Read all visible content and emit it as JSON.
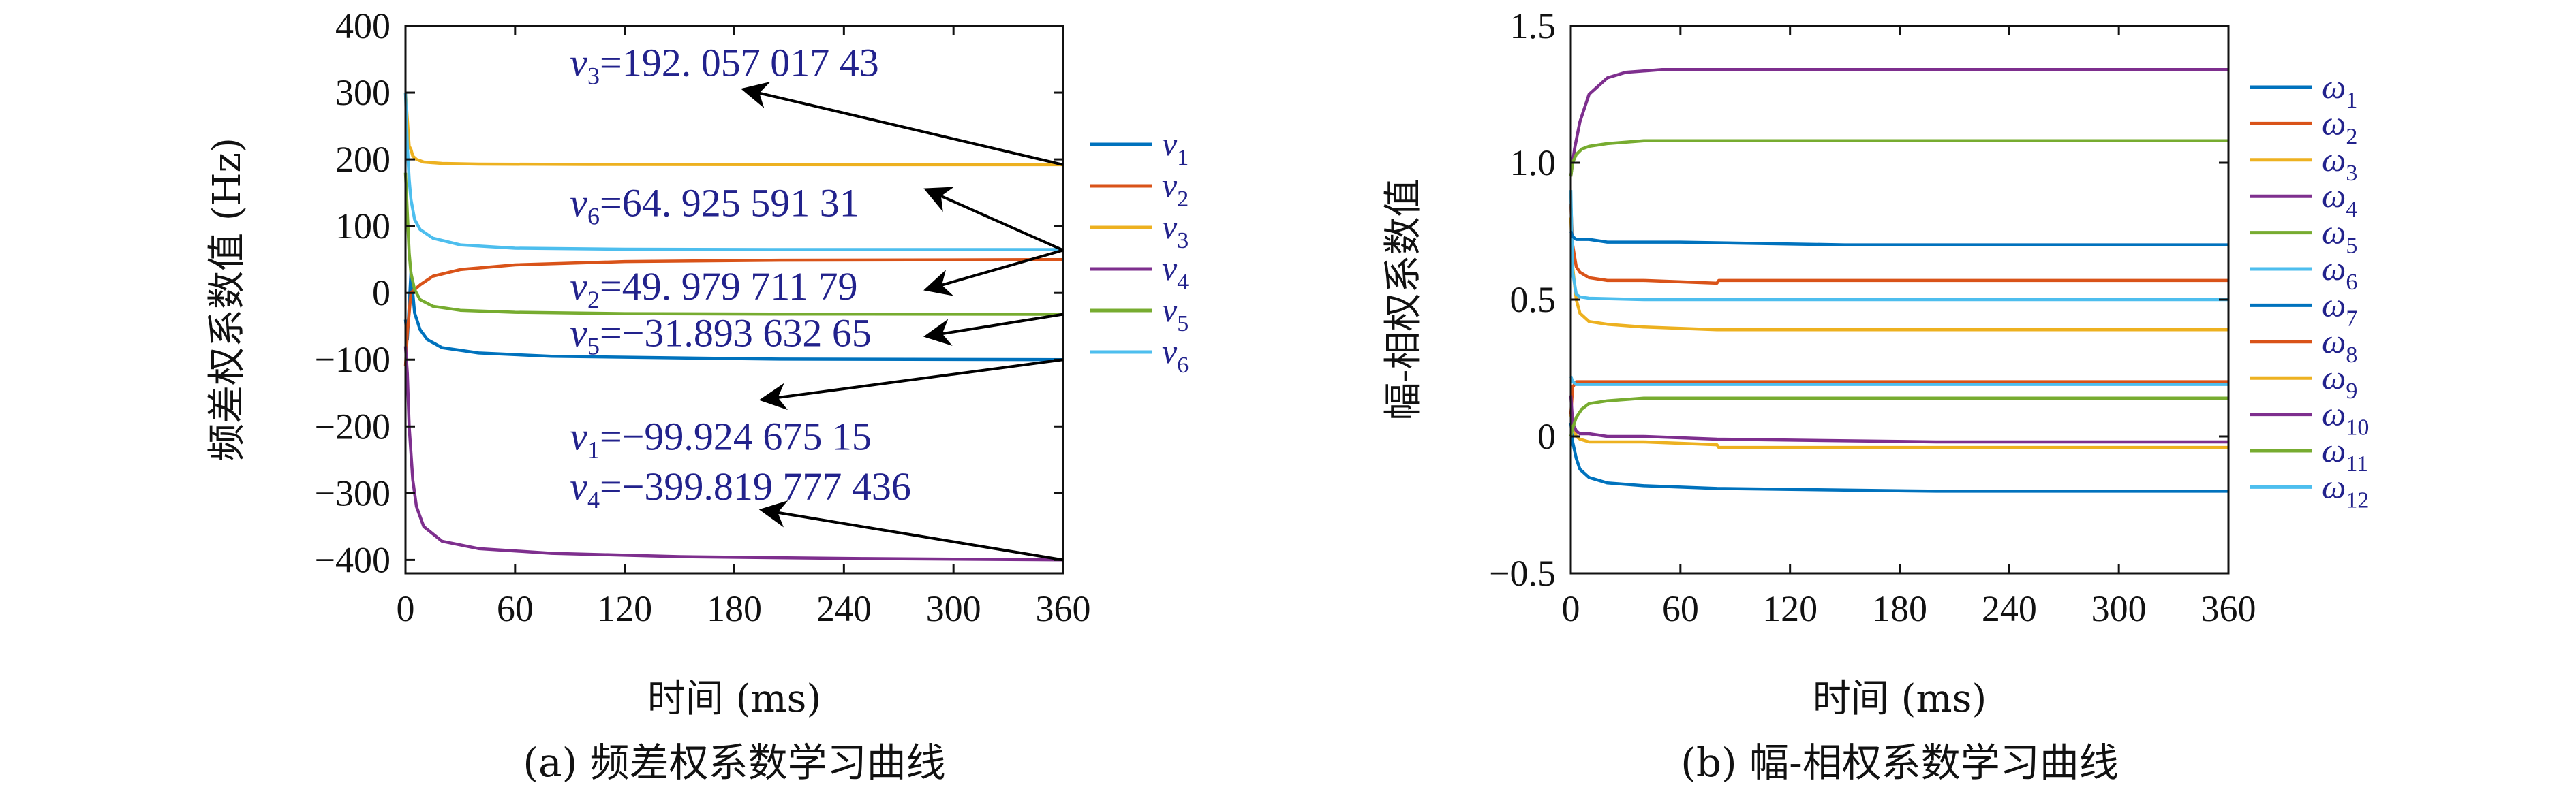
{
  "colors": [
    "#0072BD",
    "#D95319",
    "#EDB120",
    "#7E2F8E",
    "#77AC30",
    "#4DBEEE"
  ],
  "chart_data": [
    {
      "type": "line",
      "caption": "(a) 频差权系数学习曲线",
      "xlabel": "时间 (ms)",
      "ylabel": "频差权系数值 (Hz)",
      "xlim": [
        0,
        360
      ],
      "ylim": [
        -420,
        400
      ],
      "xticks": [
        0,
        60,
        120,
        180,
        240,
        300,
        360
      ],
      "yticks": [
        400,
        300,
        200,
        100,
        0,
        -100,
        -200,
        -300,
        -400
      ],
      "ytick_labels": [
        "400",
        "300",
        "200",
        "100",
        "0",
        "−100",
        "−200",
        "−300",
        "−400"
      ],
      "grid": false,
      "legend_position": "right",
      "series": [
        {
          "name": "v",
          "sub": "1",
          "x": [
            0,
            1,
            2,
            3,
            5,
            8,
            12,
            20,
            40,
            80,
            200,
            360
          ],
          "values": [
            -40,
            -70,
            -20,
            30,
            -30,
            -55,
            -70,
            -82,
            -90,
            -95,
            -99,
            -99.92
          ]
        },
        {
          "name": "v",
          "sub": "2",
          "x": [
            0,
            1,
            2,
            3,
            5,
            8,
            15,
            30,
            60,
            120,
            200,
            360
          ],
          "values": [
            -110,
            -60,
            -30,
            0,
            5,
            12,
            25,
            35,
            42,
            47,
            49,
            49.98
          ]
        },
        {
          "name": "v",
          "sub": "3",
          "x": [
            0,
            1,
            2,
            3,
            4,
            6,
            10,
            20,
            40,
            100,
            200,
            360
          ],
          "values": [
            300,
            260,
            220,
            215,
            205,
            200,
            196,
            194,
            193,
            192.5,
            192.1,
            192.06
          ]
        },
        {
          "name": "v",
          "sub": "4",
          "x": [
            0,
            1,
            2,
            4,
            6,
            10,
            20,
            40,
            80,
            150,
            250,
            360
          ],
          "values": [
            -80,
            -120,
            -200,
            -280,
            -320,
            -350,
            -372,
            -383,
            -390,
            -395,
            -398,
            -399.82
          ]
        },
        {
          "name": "v",
          "sub": "5",
          "x": [
            0,
            1,
            2,
            3,
            5,
            8,
            15,
            30,
            60,
            120,
            200,
            360
          ],
          "values": [
            180,
            120,
            60,
            30,
            5,
            -10,
            -20,
            -26,
            -29,
            -31,
            -31.6,
            -31.89
          ]
        },
        {
          "name": "v",
          "sub": "6",
          "x": [
            0,
            1,
            2,
            3,
            5,
            8,
            15,
            30,
            60,
            120,
            200,
            360
          ],
          "values": [
            300,
            220,
            170,
            140,
            110,
            95,
            82,
            72,
            67,
            65.5,
            65,
            64.93
          ]
        }
      ],
      "annotations": [
        {
          "prefix": "v",
          "sub": "3",
          "text": "=192. 057  017  43",
          "label_x": 90,
          "label_y": 325,
          "arrow_from": [
            360,
            192
          ],
          "arrow_to": [
            185,
            305
          ]
        },
        {
          "prefix": "v",
          "sub": "6",
          "text": "=64. 925  591  31",
          "label_x": 90,
          "label_y": 115,
          "arrow_from": [
            360,
            64
          ],
          "arrow_to": [
            285,
            155
          ]
        },
        {
          "prefix": "v",
          "sub": "2",
          "text": "=49. 979  711  79",
          "label_x": 90,
          "label_y": -10,
          "arrow_from": [
            360,
            64
          ],
          "arrow_to": [
            285,
            5
          ]
        },
        {
          "prefix": "v",
          "sub": "5",
          "text": "=−31.893 632 65",
          "label_x": 90,
          "label_y": -80,
          "arrow_from": [
            360,
            -32
          ],
          "arrow_to": [
            285,
            -65
          ]
        },
        {
          "prefix": "v",
          "sub": "1",
          "text": "=−99.924 675 15",
          "label_x": 90,
          "label_y": -235,
          "arrow_from": [
            360,
            -100
          ],
          "arrow_to": [
            195,
            -160
          ]
        },
        {
          "prefix": "v",
          "sub": "4",
          "text": "=−399.819 777 436",
          "label_x": 90,
          "label_y": -310,
          "arrow_from": [
            360,
            -400
          ],
          "arrow_to": [
            195,
            -325
          ]
        }
      ]
    },
    {
      "type": "line",
      "caption": "(b) 幅-相权系数学习曲线",
      "xlabel": "时间 (ms)",
      "ylabel": "幅-相权系数值",
      "xlim": [
        0,
        360
      ],
      "ylim": [
        -0.5,
        1.5
      ],
      "xticks": [
        0,
        60,
        120,
        180,
        240,
        300,
        360
      ],
      "yticks": [
        1.5,
        1.0,
        0.5,
        0,
        -0.5
      ],
      "ytick_labels": [
        "1.5",
        "1.0",
        "0.5",
        "0",
        "−0.5"
      ],
      "grid": false,
      "legend_position": "right",
      "series": [
        {
          "name": "ω",
          "sub": "1",
          "x": [
            0,
            1,
            3,
            5,
            10,
            20,
            40,
            80,
            200,
            360
          ],
          "values": [
            0.05,
            -0.02,
            -0.08,
            -0.12,
            -0.15,
            -0.17,
            -0.18,
            -0.19,
            -0.2,
            -0.2
          ]
        },
        {
          "name": "ω",
          "sub": "2",
          "x": [
            0,
            1,
            3,
            5,
            10,
            20,
            40,
            80,
            81,
            200,
            360
          ],
          "values": [
            0.85,
            0.7,
            0.62,
            0.6,
            0.58,
            0.57,
            0.57,
            0.56,
            0.57,
            0.57,
            0.57
          ]
        },
        {
          "name": "ω",
          "sub": "3",
          "x": [
            0,
            1,
            3,
            5,
            10,
            20,
            40,
            80,
            200,
            360
          ],
          "values": [
            0.8,
            0.62,
            0.5,
            0.45,
            0.42,
            0.41,
            0.4,
            0.39,
            0.39,
            0.39
          ]
        },
        {
          "name": "ω",
          "sub": "4",
          "x": [
            0,
            2,
            5,
            10,
            20,
            30,
            50,
            100,
            200,
            360
          ],
          "values": [
            0.95,
            1.05,
            1.15,
            1.25,
            1.31,
            1.33,
            1.34,
            1.34,
            1.34,
            1.34
          ]
        },
        {
          "name": "ω",
          "sub": "5",
          "x": [
            0,
            1,
            3,
            6,
            10,
            20,
            40,
            100,
            200,
            360
          ],
          "values": [
            0.95,
            1.0,
            1.03,
            1.05,
            1.06,
            1.07,
            1.08,
            1.08,
            1.08,
            1.08
          ]
        },
        {
          "name": "ω",
          "sub": "6",
          "x": [
            0,
            1,
            3,
            5,
            10,
            40,
            100,
            200,
            360
          ],
          "values": [
            0.9,
            0.6,
            0.52,
            0.51,
            0.505,
            0.5,
            0.5,
            0.5,
            0.5
          ]
        },
        {
          "name": "ω",
          "sub": "7",
          "x": [
            0,
            1,
            3,
            5,
            10,
            20,
            60,
            150,
            360
          ],
          "values": [
            0.75,
            0.73,
            0.72,
            0.72,
            0.72,
            0.71,
            0.71,
            0.7,
            0.7
          ]
        },
        {
          "name": "ω",
          "sub": "8",
          "x": [
            0,
            1,
            3,
            5,
            10,
            40,
            100,
            200,
            360
          ],
          "values": [
            0.08,
            0.18,
            0.2,
            0.2,
            0.2,
            0.2,
            0.2,
            0.2,
            0.2
          ]
        },
        {
          "name": "ω",
          "sub": "9",
          "x": [
            0,
            1,
            3,
            5,
            10,
            20,
            40,
            80,
            81,
            200,
            360
          ],
          "values": [
            0.08,
            0.04,
            0.0,
            -0.01,
            -0.02,
            -0.02,
            -0.02,
            -0.03,
            -0.04,
            -0.04,
            -0.04
          ]
        },
        {
          "name": "ω",
          "sub": "10",
          "x": [
            0,
            1,
            3,
            5,
            10,
            20,
            40,
            80,
            200,
            360
          ],
          "values": [
            0.15,
            0.05,
            0.02,
            0.01,
            0.01,
            0.0,
            0.0,
            -0.01,
            -0.02,
            -0.02
          ]
        },
        {
          "name": "ω",
          "sub": "11",
          "x": [
            0,
            1,
            3,
            6,
            10,
            20,
            40,
            80,
            200,
            360
          ],
          "values": [
            0.0,
            0.03,
            0.07,
            0.1,
            0.12,
            0.13,
            0.14,
            0.14,
            0.14,
            0.14
          ]
        },
        {
          "name": "ω",
          "sub": "12",
          "x": [
            0,
            1,
            3,
            5,
            10,
            40,
            100,
            200,
            360
          ],
          "values": [
            0.22,
            0.2,
            0.19,
            0.19,
            0.19,
            0.19,
            0.19,
            0.19,
            0.19
          ]
        }
      ]
    }
  ]
}
